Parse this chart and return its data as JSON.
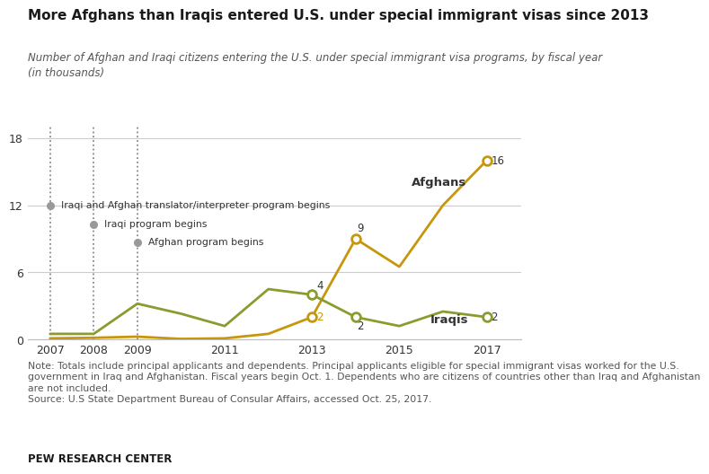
{
  "title": "More Afghans than Iraqis entered U.S. under special immigrant visas since 2013",
  "subtitle": "Number of Afghan and Iraqi citizens entering the U.S. under special immigrant visa programs, by fiscal year\n(in thousands)",
  "afghan_x": [
    2007,
    2008,
    2009,
    2010,
    2011,
    2012,
    2013,
    2014,
    2015,
    2016,
    2017
  ],
  "afghan_y": [
    0.1,
    0.15,
    0.25,
    0.05,
    0.1,
    0.5,
    2,
    9,
    6.5,
    12,
    16
  ],
  "iraqi_x": [
    2007,
    2008,
    2009,
    2010,
    2011,
    2012,
    2013,
    2014,
    2015,
    2016,
    2017
  ],
  "iraqi_y": [
    0.5,
    0.5,
    3.2,
    2.3,
    1.2,
    4.5,
    4,
    2,
    1.2,
    2.5,
    2
  ],
  "afghan_color": "#C8960C",
  "iraqi_color": "#8B9B2E",
  "annotation_dot_color": "#999999",
  "vline_2007_label": "Iraqi and Afghan translator/interpreter program begins",
  "vline_2008_label": "Iraqi program begins",
  "vline_2009_label": "Afghan program begins",
  "vline_2007_x": 2007,
  "vline_2008_x": 2008,
  "vline_2009_x": 2009,
  "label_afghans": "Afghans",
  "label_iraqis": "Iraqis",
  "note_line1": "Note: Totals include principal applicants and dependents. Principal applicants eligible for special immigrant visas worked for the U.S.",
  "note_line2": "government in Iraq and Afghanistan. Fiscal years begin Oct. 1. Dependents who are citizens of countries other than Iraq and Afghanistan",
  "note_line3": "are not included.",
  "note_line4": "Source: U.S State Department Bureau of Consular Affairs, accessed Oct. 25, 2017.",
  "source_label": "PEW RESEARCH CENTER",
  "ylim": [
    0,
    19
  ],
  "yticks": [
    0,
    6,
    12,
    18
  ],
  "xlim": [
    2006.5,
    2017.8
  ],
  "xticks": [
    2007,
    2008,
    2009,
    2011,
    2013,
    2015,
    2017
  ],
  "annotated_points_afghan": [
    [
      2013,
      2
    ],
    [
      2014,
      9
    ],
    [
      2017,
      16
    ]
  ],
  "annotated_points_iraqi": [
    [
      2013,
      4
    ],
    [
      2014,
      2
    ],
    [
      2017,
      2
    ]
  ],
  "bg_color": "#ffffff",
  "grid_color": "#cccccc"
}
